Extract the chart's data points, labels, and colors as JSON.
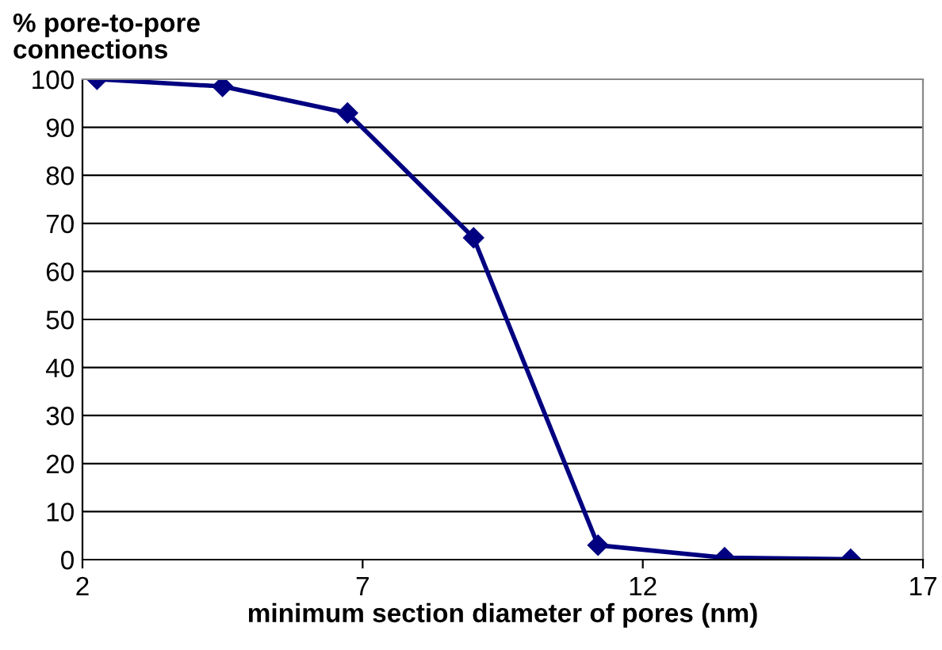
{
  "chart_data": {
    "type": "line",
    "ylabel": "% pore-to-pore\nconnections",
    "xlabel": "minimum section diameter of pores (nm)",
    "x": [
      2.26,
      4.5,
      6.73,
      8.98,
      11.2,
      13.46,
      15.71
    ],
    "series": [
      {
        "color": "#000080",
        "values": [
          100,
          98.5,
          93,
          67,
          3,
          0.4,
          0.1
        ]
      }
    ],
    "xlim": [
      2,
      17
    ],
    "xticks": [
      2,
      7,
      12,
      17
    ],
    "ylim": [
      0,
      100
    ],
    "yticks": [
      0,
      10,
      20,
      30,
      40,
      50,
      60,
      70,
      80,
      90,
      100
    ],
    "grid": "y",
    "marker": "diamond",
    "line_style": "solid"
  }
}
